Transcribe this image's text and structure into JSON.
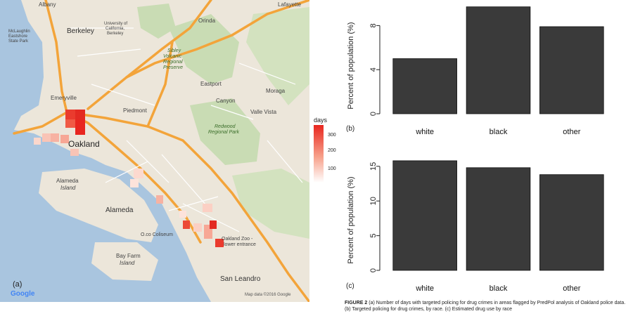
{
  "map": {
    "panel_label": "(a)",
    "legend_title": "days",
    "legend_ticks": [
      "300",
      "200",
      "100"
    ],
    "legend_colors": [
      "#e8261f",
      "#f7a08a",
      "#ffffff"
    ],
    "attribution": "Map data ©2016 Google",
    "logo": "Google",
    "places": {
      "albany": "Albany",
      "lafayette": "Lafayette",
      "berkeley": "Berkeley",
      "uc_line1": "University of",
      "uc_line2": "California,",
      "uc_line3": "Berkeley",
      "orinda": "Orinda",
      "mclaughlin_1": "McLaughlin",
      "mclaughlin_2": "Eastshore",
      "mclaughlin_3": "State Park",
      "sibley_1": "Sibley",
      "sibley_2": "Volcanic",
      "sibley_3": "Regional",
      "sibley_4": "Preserve",
      "emeryville": "Emeryville",
      "piedmont": "Piedmont",
      "eastport": "Eastport",
      "canyon": "Canyon",
      "moraga": "Moraga",
      "valle_vista": "Valle Vista",
      "redwood_1": "Redwood",
      "redwood_2": "Regional Park",
      "oakland": "Oakland",
      "alameda_island_1": "Alameda",
      "alameda_island_2": "Island",
      "alameda": "Alameda",
      "coliseum": "O.co Coliseum",
      "zoo_1": "Oakland Zoo -",
      "zoo_2": "lower entrance",
      "bayfarm_1": "Bay Farm",
      "bayfarm_2": "Island",
      "san_leandro": "San Leandro"
    }
  },
  "chart_data": [
    {
      "type": "bar",
      "panel_label": "(b)",
      "categories": [
        "white",
        "black",
        "other"
      ],
      "values": [
        5.0,
        9.7,
        7.9
      ],
      "ylabel": "Percent of population (%)",
      "yticks": [
        0,
        4,
        8
      ],
      "ylim": [
        0,
        10
      ],
      "bar_color": "#3a3a3a"
    },
    {
      "type": "bar",
      "panel_label": "(c)",
      "categories": [
        "white",
        "black",
        "other"
      ],
      "values": [
        15.8,
        14.8,
        13.8
      ],
      "ylabel": "Percent of population (%)",
      "yticks": [
        0,
        5,
        10,
        15
      ],
      "ylim": [
        0,
        16.5
      ],
      "bar_color": "#3a3a3a"
    }
  ],
  "caption": {
    "figure_label": "FIGURE 2",
    "text": " (a) Number of days with targeted policing for drug crimes in areas flagged by PredPol analysis of Oakland police data. (b) Targeted policing for drug crimes, by race. (c) Estimated drug use by race"
  }
}
